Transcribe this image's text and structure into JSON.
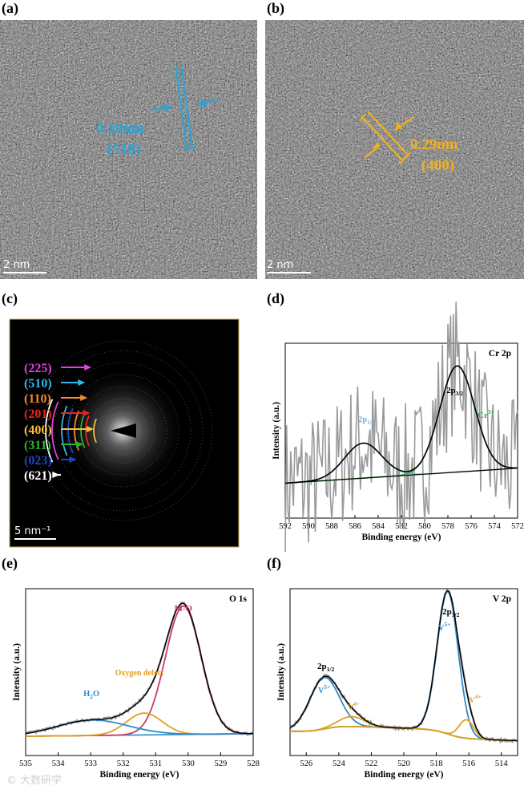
{
  "panels": {
    "a": {
      "label": "(a)",
      "scale": "2 nm",
      "spacing": "0.19nm",
      "plane": "(510)",
      "color": "#2aa4d8"
    },
    "b": {
      "label": "(b)",
      "scale": "2 nm",
      "spacing": "0.29nm",
      "plane": "(400)",
      "color": "#f0b020"
    },
    "c": {
      "label": "(c)",
      "scale": "5 nm⁻¹",
      "rings": [
        {
          "name": "(225)",
          "color": "#e040e0"
        },
        {
          "name": "(510)",
          "color": "#35b5f0"
        },
        {
          "name": "(110)",
          "color": "#f08a30"
        },
        {
          "name": "(201)",
          "color": "#f02020"
        },
        {
          "name": "(400)",
          "color": "#f5c040"
        },
        {
          "name": "(311)",
          "color": "#30b030"
        },
        {
          "name": "(023)",
          "color": "#1848c8"
        },
        {
          "name": "(621)",
          "color": "#ffffff"
        }
      ]
    },
    "d": {
      "label": "(d)"
    },
    "e": {
      "label": "(e)"
    },
    "f": {
      "label": "(f)"
    }
  },
  "chart_data": [
    {
      "panel": "d",
      "type": "line",
      "title": "Cr 2p",
      "xlabel": "Binding energy (eV)",
      "ylabel": "Intensity (a.u.)",
      "xlim": [
        592,
        572
      ],
      "xticks": [
        592,
        590,
        588,
        586,
        584,
        582,
        580,
        578,
        576,
        574,
        572
      ],
      "annotations": [
        {
          "text": "2p",
          "sub": "1/2",
          "x": 585.0,
          "color": "#7ab0e0"
        },
        {
          "text": "2p",
          "sub": "3/2",
          "x": 577.4,
          "color": "#000000"
        },
        {
          "text": "Cr",
          "sup": "3+",
          "x": 575.0,
          "color": "#30b030"
        }
      ],
      "series": [
        {
          "name": "raw",
          "color": "#9a9a9a",
          "center": [
            585.3,
            577.2
          ],
          "amp": [
            0.28,
            0.85
          ],
          "width": [
            1.6,
            1.5
          ],
          "noise": 0.55
        },
        {
          "name": "envelope",
          "color": "#000000"
        },
        {
          "name": "2p1/2 fit",
          "color": "#7ab0e0"
        },
        {
          "name": "Cr3+ fit",
          "color": "#30b030"
        },
        {
          "name": "background",
          "color": "#000000"
        }
      ]
    },
    {
      "panel": "e",
      "type": "line",
      "title": "O 1s",
      "xlabel": "Binding energy (eV)",
      "ylabel": "Intensity (a.u.)",
      "xlim": [
        535,
        528
      ],
      "xticks": [
        535,
        534,
        533,
        532,
        531,
        530,
        529,
        528
      ],
      "annotations": [
        {
          "text": "M-O",
          "x": 530.15,
          "color": "#c83c6a"
        },
        {
          "text": "Oxygen defect",
          "x": 531.4,
          "color": "#e0a020"
        },
        {
          "text": "H",
          "sub": "2",
          "tail": "O",
          "x": 532.95,
          "color": "#2e8ac8"
        }
      ],
      "series": [
        {
          "name": "M-O",
          "color": "#c83c6a",
          "center": 530.15,
          "amp": 1.0,
          "width": 0.55
        },
        {
          "name": "Oxygen defect",
          "color": "#e0a020",
          "center": 531.35,
          "amp": 0.17,
          "width": 0.55
        },
        {
          "name": "H2O",
          "color": "#2e8ac8",
          "center": 532.95,
          "amp": 0.12,
          "width": 1.1
        },
        {
          "name": "envelope",
          "color": "#000000"
        },
        {
          "name": "background",
          "color": "#2e8ac8"
        }
      ]
    },
    {
      "panel": "f",
      "type": "line",
      "title": "V 2p",
      "xlabel": "Binding energy (eV)",
      "ylabel": "Intensity (a.u.)",
      "xlim": [
        527,
        513
      ],
      "xticks": [
        526,
        524,
        522,
        520,
        518,
        516,
        514
      ],
      "annotations": [
        {
          "text": "2p",
          "sub": "3/2",
          "x": 517.3,
          "color": "#000000"
        },
        {
          "text": "V",
          "sup": "5+",
          "x": 517.3,
          "color": "#2e8ac8"
        },
        {
          "text": "2p",
          "sub": "1/2",
          "x": 524.9,
          "color": "#000000"
        },
        {
          "text": "V",
          "sup": "5+",
          "x": 524.9,
          "color": "#2e8ac8"
        },
        {
          "text": "V",
          "sup": "4+",
          "x": 523.0,
          "color": "#e0a020"
        },
        {
          "text": "V",
          "sup": "4+",
          "x": 515.8,
          "color": "#e0a020"
        }
      ],
      "series": [
        {
          "name": "V5+ 2p3/2",
          "color": "#2e8ac8",
          "center": 517.3,
          "amp": 1.0,
          "width": 0.65
        },
        {
          "name": "V5+ 2p1/2",
          "color": "#2e8ac8",
          "center": 524.9,
          "amp": 0.36,
          "width": 0.9
        },
        {
          "name": "V4+ 2p3/2",
          "color": "#e0a020",
          "center": 516.15,
          "amp": 0.13,
          "width": 0.45
        },
        {
          "name": "V4+ 2p1/2",
          "color": "#e0a020",
          "center": 523.2,
          "amp": 0.07,
          "width": 0.8
        },
        {
          "name": "envelope",
          "color": "#000000"
        },
        {
          "name": "background",
          "color": "#e0a020"
        }
      ]
    }
  ],
  "watermark": "© 大数研学"
}
